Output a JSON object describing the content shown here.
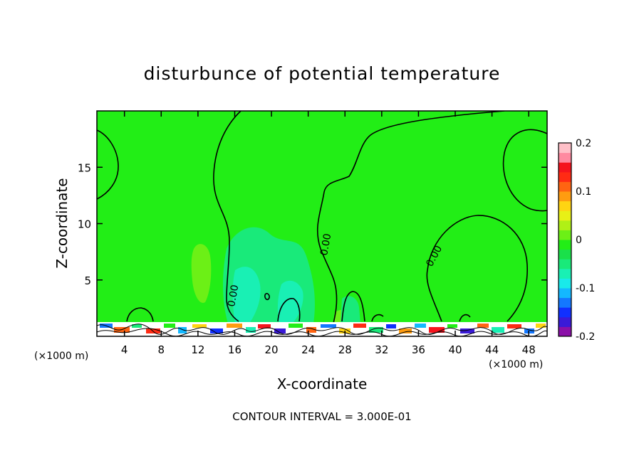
{
  "chart_data": {
    "type": "heatmap",
    "title": "disturbunce of potential temperature",
    "xlabel": "X-coordinate",
    "ylabel": "Z-coordinate",
    "x_unit": "(×1000 m)",
    "z_unit": "(×1000 m)",
    "xlim": [
      1,
      50
    ],
    "ylim": [
      0,
      20
    ],
    "x_ticks": [
      4,
      8,
      12,
      16,
      20,
      24,
      28,
      32,
      36,
      40,
      44,
      48
    ],
    "y_ticks": [
      5,
      10,
      15
    ],
    "colorbar": {
      "vmin": -0.2,
      "vmax": 0.2,
      "ticks": [
        -0.2,
        -0.1,
        0,
        0.1,
        0.2
      ],
      "tick_labels": [
        "-0.2",
        "-0.1",
        "0",
        "0.1",
        "0.2"
      ],
      "colors": [
        "#8b10a8",
        "#3a1ad8",
        "#1030ff",
        "#1478ff",
        "#14b8ff",
        "#19eaea",
        "#19f0b4",
        "#19ea7a",
        "#1ae04a",
        "#22ee16",
        "#6cf016",
        "#b0f016",
        "#e8f016",
        "#ffd412",
        "#ff9c10",
        "#ff6412",
        "#ff2b14",
        "#f5141e",
        "#ff8aa0",
        "#ffc0c8"
      ]
    },
    "contour_interval": "CONTOUR INTERVAL = 3.000E-01",
    "contour_labels": [
      "0.00",
      "0.00",
      "0.00"
    ],
    "background_value": 0.0
  }
}
